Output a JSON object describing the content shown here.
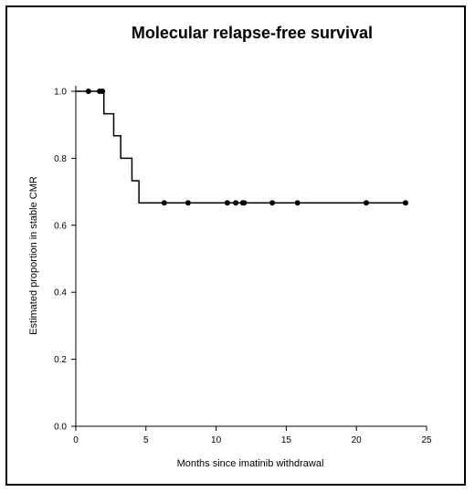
{
  "chart_data": {
    "type": "line",
    "title": "Molecular relapse-free survival",
    "xlabel": "Months since imatinib withdrawal",
    "ylabel": "Estimated proportion in stable CMR",
    "xlim": [
      0,
      25
    ],
    "ylim": [
      0,
      1.0
    ],
    "x_ticks": [
      0,
      5,
      10,
      15,
      20,
      25
    ],
    "y_ticks": [
      0.0,
      0.2,
      0.4,
      0.6,
      0.8,
      1.0
    ],
    "x_tick_labels": [
      "0",
      "5",
      "10",
      "15",
      "20",
      "25"
    ],
    "y_tick_labels": [
      "0.0",
      "0.2",
      "0.4",
      "0.6",
      "0.8",
      "1.0"
    ],
    "grid": false,
    "series": [
      {
        "step_x": [
          0,
          2.0,
          2.7,
          3.2,
          4.0,
          4.5,
          23.5
        ],
        "step_y": [
          1.0,
          0.933,
          0.867,
          0.8,
          0.733,
          0.667,
          0.667
        ],
        "censored_x": [
          0.9,
          1.7,
          1.9,
          6.3,
          8.0,
          10.8,
          11.4,
          11.9,
          12.0,
          14.0,
          15.8,
          20.7,
          23.5
        ],
        "censored_y": [
          1.0,
          1.0,
          1.0,
          0.667,
          0.667,
          0.667,
          0.667,
          0.667,
          0.667,
          0.667,
          0.667,
          0.667,
          0.667
        ],
        "color": "#000000"
      }
    ]
  }
}
